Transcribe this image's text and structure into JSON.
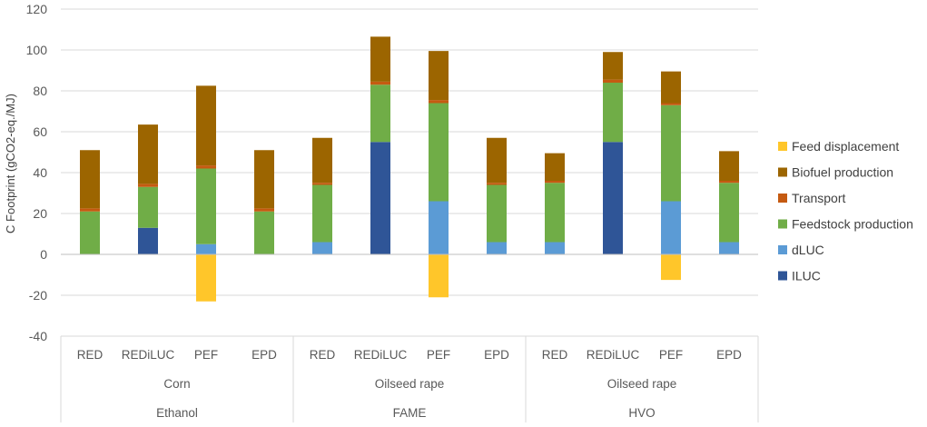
{
  "chart_data": {
    "type": "bar",
    "stacked": true,
    "ylabel": "C Footprint (gCO2-eq./MJ)",
    "ylim": [
      -40,
      120
    ],
    "yticks": [
      -40,
      -20,
      0,
      20,
      40,
      60,
      80,
      100,
      120
    ],
    "grid": true,
    "legend_position": "right",
    "categories": [
      "RED",
      "REDiLUC",
      "PEF",
      "EPD",
      "RED",
      "REDiLUC",
      "PEF",
      "EPD",
      "RED",
      "REDiLUC",
      "PEF",
      "EPD"
    ],
    "groups_level2": [
      {
        "label": "Corn",
        "count": 4
      },
      {
        "label": "Oilseed rape",
        "count": 4
      },
      {
        "label": "Oilseed rape",
        "count": 4
      }
    ],
    "groups_level1": [
      {
        "label": "Ethanol",
        "count": 4
      },
      {
        "label": "FAME",
        "count": 4
      },
      {
        "label": "HVO",
        "count": 4
      }
    ],
    "series": [
      {
        "name": "ILUC",
        "color": "#2F5597",
        "values": [
          0,
          13,
          0,
          0,
          0,
          55,
          0,
          0,
          0,
          55,
          0,
          0
        ]
      },
      {
        "name": "dLUC",
        "color": "#5B9BD5",
        "values": [
          0,
          0,
          5,
          0,
          6,
          0,
          26,
          6,
          6,
          0,
          26,
          6
        ]
      },
      {
        "name": "Feedstock production",
        "color": "#70AD47",
        "values": [
          21,
          20,
          37,
          21,
          28,
          28,
          48,
          28,
          29,
          29,
          47,
          29
        ]
      },
      {
        "name": "Transport",
        "color": "#C55A11",
        "values": [
          1.5,
          1.5,
          1.5,
          1.5,
          1,
          1.5,
          1.5,
          1,
          1,
          1.5,
          1,
          1
        ]
      },
      {
        "name": "Biofuel production",
        "color": "#9C6500",
        "values": [
          28.5,
          29,
          39,
          28.5,
          22,
          22,
          24,
          22,
          13.5,
          13.5,
          15.5,
          14.5
        ]
      },
      {
        "name": "Feed displacement",
        "color": "#FFC62A",
        "values": [
          0,
          0,
          -23,
          0,
          0,
          0,
          -21,
          0,
          0,
          0,
          -12.5,
          0
        ]
      }
    ],
    "legend_order": [
      "Feed displacement",
      "Biofuel production",
      "Transport",
      "Feedstock production",
      "dLUC",
      "ILUC"
    ]
  }
}
